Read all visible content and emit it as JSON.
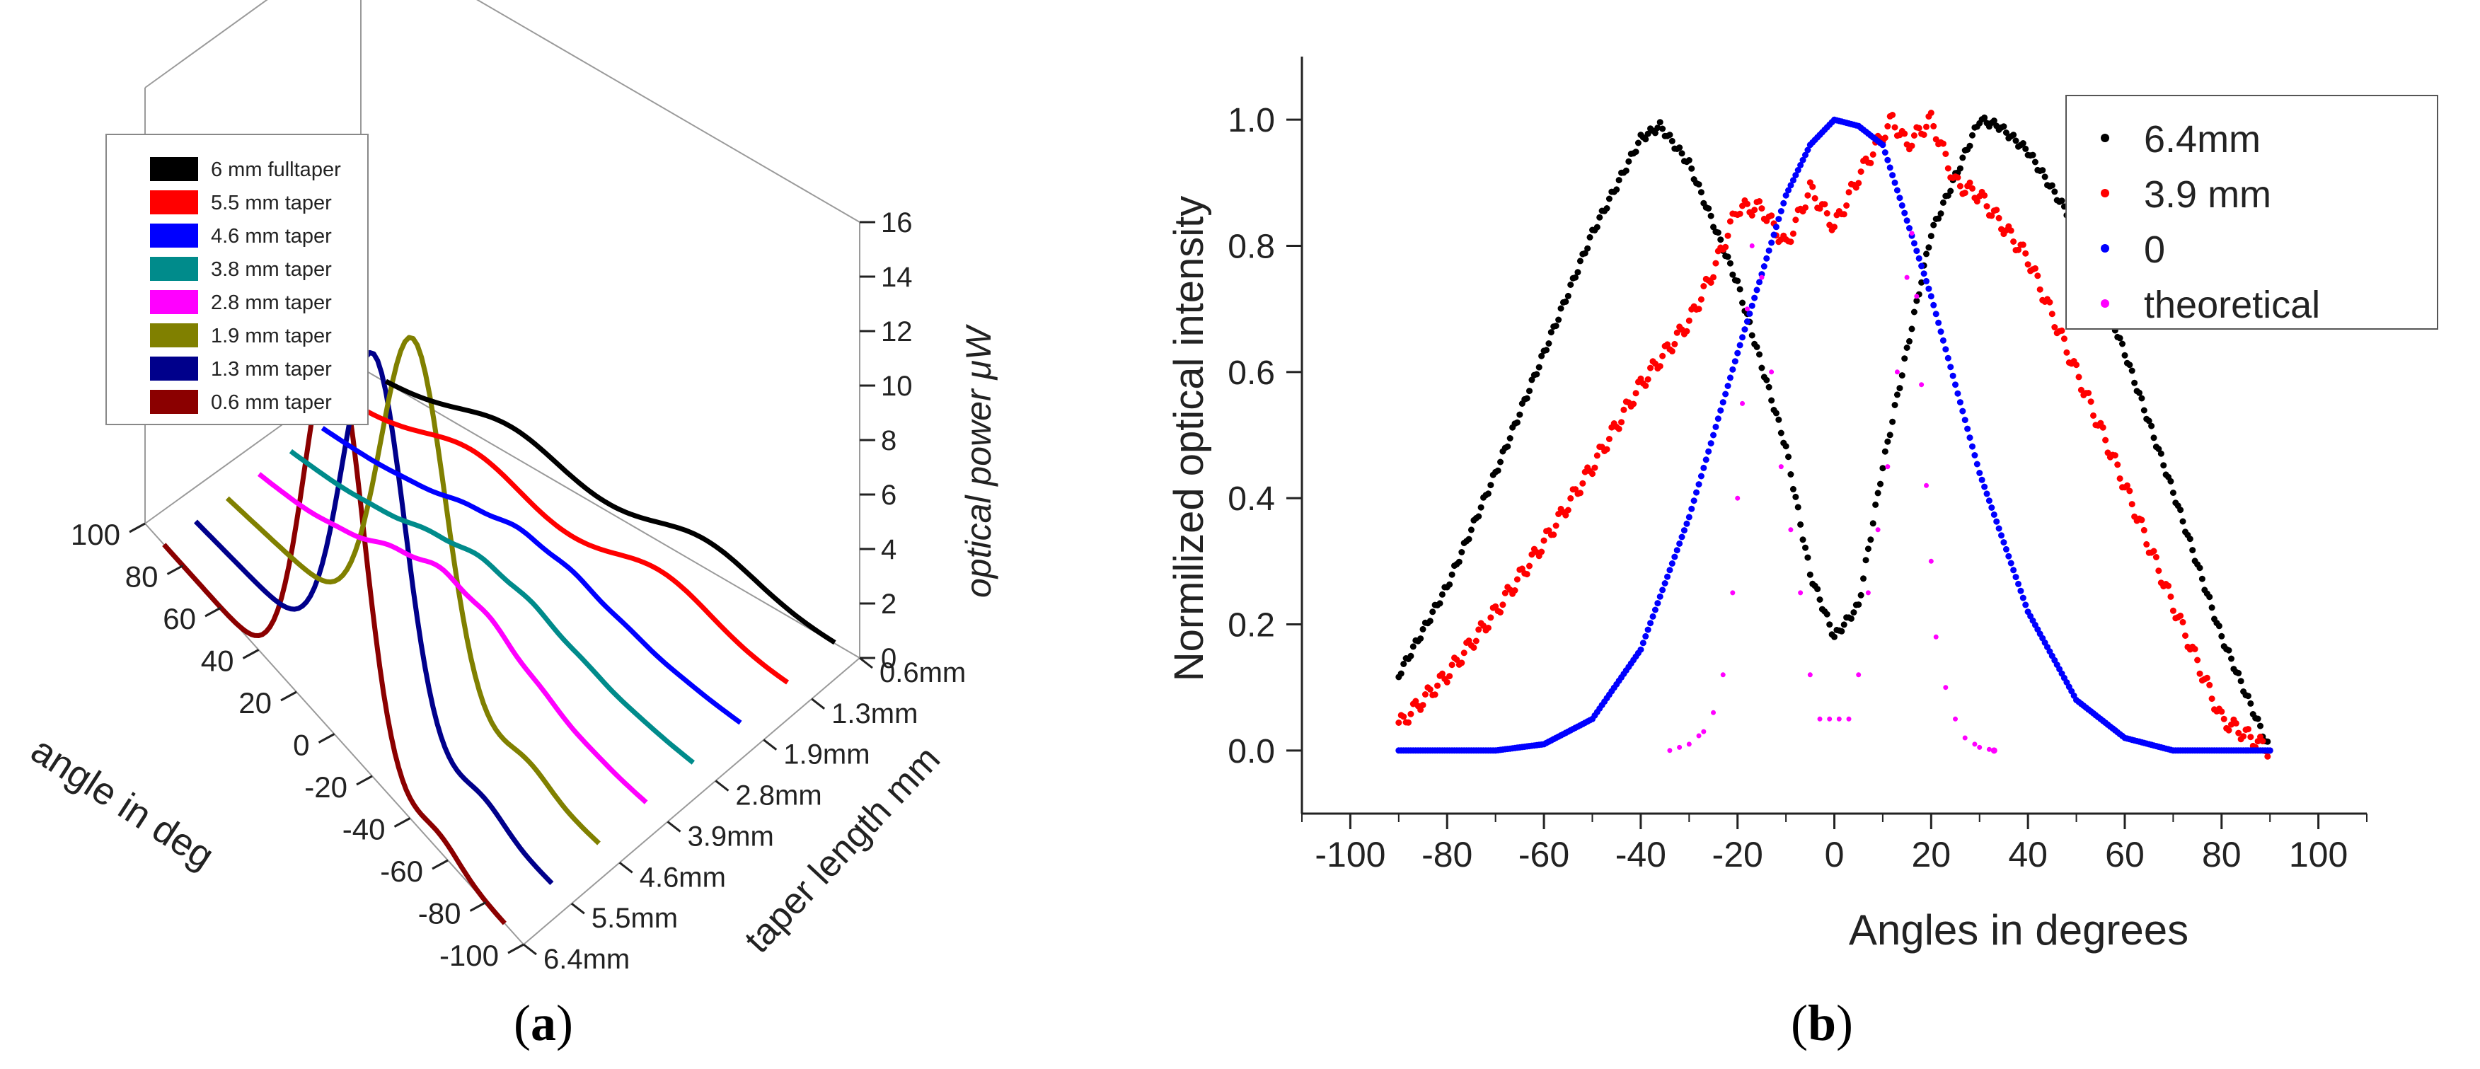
{
  "panel_a": {
    "caption_open": "(",
    "caption_letter": "a",
    "caption_close": ")"
  },
  "panel_b": {
    "caption_open": "(",
    "caption_letter": "b",
    "caption_close": ")"
  },
  "chart_data": [
    {
      "type": "line",
      "subtype": "3d-waterfall",
      "title": "",
      "xlabel": "angle in deg",
      "ylabel": "taper length mm",
      "zlabel": "optical power μW",
      "x_ticks": [
        "100",
        "80",
        "60",
        "40",
        "20",
        "0",
        "-20",
        "-40",
        "-60",
        "-80",
        "-100"
      ],
      "y_ticks": [
        "0.6mm",
        "1.3mm",
        "1.9mm",
        "2.8mm",
        "3.9mm",
        "4.6mm",
        "5.5mm",
        "6.4mm"
      ],
      "z_ticks": [
        "0",
        "2",
        "4",
        "6",
        "8",
        "10",
        "12",
        "14",
        "16"
      ],
      "xlim": [
        -100,
        100
      ],
      "zlim": [
        0,
        16
      ],
      "legend_position": "top-left",
      "series": [
        {
          "name": "6 mm fulltaper",
          "color": "#000000",
          "peak_uW": 1.1,
          "shape": "double-lobe"
        },
        {
          "name": "5.5 mm taper",
          "color": "#ff0000",
          "peak_uW": 1.2,
          "shape": "double-lobe"
        },
        {
          "name": "4.6 mm taper",
          "color": "#0000ff",
          "peak_uW": 1.4,
          "shape": "broad"
        },
        {
          "name": "3.8 mm taper",
          "color": "#008b8b",
          "peak_uW": 1.5,
          "shape": "broad"
        },
        {
          "name": "2.8 mm taper",
          "color": "#ff00ff",
          "peak_uW": 2.2,
          "shape": "broad"
        },
        {
          "name": "1.9 mm taper",
          "color": "#808000",
          "peak_uW": 12.2,
          "shape": "peak"
        },
        {
          "name": "1.3 mm taper",
          "color": "#00008b",
          "peak_uW": 12.8,
          "shape": "peak"
        },
        {
          "name": "0.6 mm taper",
          "color": "#8b0000",
          "peak_uW": 14.2,
          "shape": "peak"
        }
      ]
    },
    {
      "type": "scatter",
      "title": "",
      "xlabel": "Angles in degrees",
      "ylabel": "Normilized optical intensity",
      "xlim": [
        -110,
        110
      ],
      "ylim": [
        -0.1,
        1.1
      ],
      "x_ticks": [
        "-100",
        "-80",
        "-60",
        "-40",
        "-20",
        "0",
        "20",
        "40",
        "60",
        "80",
        "100"
      ],
      "y_ticks": [
        "0.0",
        "0.2",
        "0.4",
        "0.6",
        "0.8",
        "1.0"
      ],
      "legend_position": "top-right",
      "series": [
        {
          "name": "6.4mm",
          "color": "#000000",
          "x": [
            -90,
            -80,
            -70,
            -60,
            -50,
            -40,
            -36,
            -30,
            -20,
            -10,
            -5,
            0,
            5,
            10,
            20,
            30,
            34,
            40,
            50,
            60,
            70,
            80,
            90
          ],
          "y": [
            0.12,
            0.26,
            0.44,
            0.63,
            0.82,
            0.97,
            0.99,
            0.93,
            0.74,
            0.48,
            0.28,
            0.18,
            0.23,
            0.45,
            0.82,
            1.0,
            0.99,
            0.95,
            0.83,
            0.63,
            0.41,
            0.18,
            0.0
          ]
        },
        {
          "name": "3.9 mm",
          "color": "#ff0000",
          "x": [
            -90,
            -80,
            -70,
            -60,
            -50,
            -40,
            -30,
            -25,
            -20,
            -15,
            -10,
            -5,
            0,
            5,
            8,
            12,
            15,
            20,
            25,
            30,
            40,
            50,
            60,
            70,
            80,
            90
          ],
          "y": [
            0.04,
            0.12,
            0.22,
            0.33,
            0.45,
            0.58,
            0.68,
            0.76,
            0.86,
            0.86,
            0.8,
            0.89,
            0.83,
            0.91,
            0.95,
            1.0,
            0.96,
            1.0,
            0.9,
            0.88,
            0.78,
            0.6,
            0.42,
            0.23,
            0.05,
            0.0
          ]
        },
        {
          "name": "0",
          "color": "#0000ff",
          "x": [
            -90,
            -70,
            -60,
            -50,
            -40,
            -30,
            -20,
            -10,
            -5,
            0,
            5,
            10,
            20,
            30,
            40,
            50,
            60,
            70,
            90
          ],
          "y": [
            0.0,
            0.0,
            0.01,
            0.05,
            0.16,
            0.37,
            0.63,
            0.88,
            0.96,
            1.0,
            0.99,
            0.96,
            0.72,
            0.44,
            0.22,
            0.08,
            0.02,
            0.0,
            0.0
          ]
        },
        {
          "name": "theoretical",
          "color": "#ff00ff",
          "x": [
            -34,
            -30,
            -27,
            -25,
            -23,
            -21,
            -20,
            -19,
            -18,
            -17,
            -15,
            -13,
            -11,
            -9,
            -7,
            -5,
            -3,
            3,
            5,
            7,
            9,
            11,
            13,
            15,
            16,
            17,
            18,
            19,
            20,
            21,
            23,
            25,
            27,
            30,
            33
          ],
          "y": [
            0.0,
            0.01,
            0.03,
            0.06,
            0.12,
            0.25,
            0.4,
            0.55,
            0.7,
            0.8,
            0.75,
            0.6,
            0.45,
            0.35,
            0.25,
            0.12,
            0.05,
            0.05,
            0.12,
            0.25,
            0.35,
            0.45,
            0.6,
            0.75,
            0.82,
            0.72,
            0.58,
            0.42,
            0.3,
            0.18,
            0.1,
            0.05,
            0.02,
            0.005,
            0.0
          ]
        }
      ]
    }
  ]
}
